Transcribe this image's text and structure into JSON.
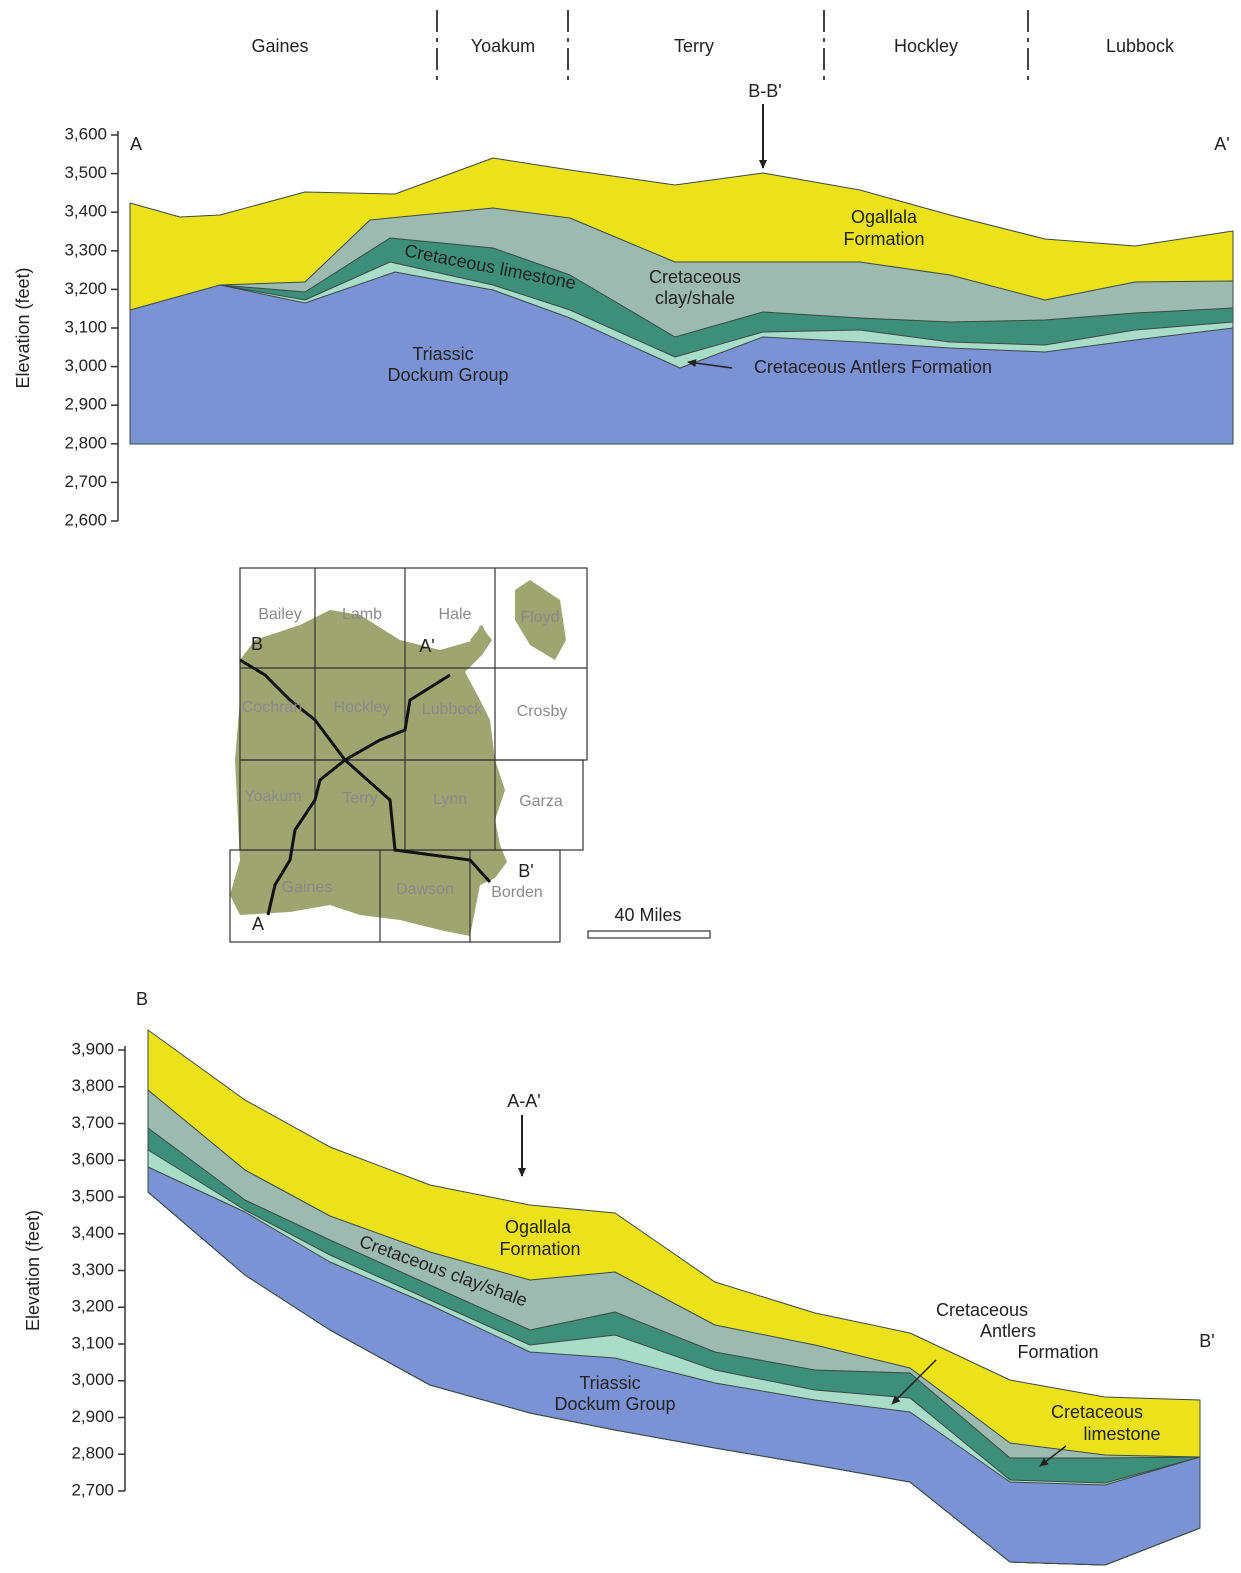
{
  "top_section": {
    "counties": [
      "Gaines",
      "Yoakum",
      "Terry",
      "Hockley",
      "Lubbock"
    ],
    "marker": "B-B'",
    "end_labels": [
      "A",
      "A'"
    ],
    "y_axis": {
      "title": "Elevation (feet)",
      "ticks": [
        {
          "value": 3600,
          "label": "3,600"
        },
        {
          "value": 3500,
          "label": "3,500"
        },
        {
          "value": 3400,
          "label": "3,400"
        },
        {
          "value": 3300,
          "label": "3,300"
        },
        {
          "value": 3200,
          "label": "3,200"
        },
        {
          "value": 3100,
          "label": "3,100"
        },
        {
          "value": 3000,
          "label": "3,000"
        },
        {
          "value": 2900,
          "label": "2,900"
        },
        {
          "value": 2800,
          "label": "2,800"
        },
        {
          "value": 2700,
          "label": "2,700"
        },
        {
          "value": 2600,
          "label": "2,600"
        }
      ]
    },
    "layer_labels": {
      "ogallala": [
        "Ogallala",
        "Formation"
      ],
      "limestone": [
        "Cretaceous limestone"
      ],
      "clay": [
        "Cretaceous",
        "clay/shale"
      ],
      "triassic": [
        "Triassic",
        "Dockum Group"
      ],
      "antlers": [
        "Cretaceous Antlers Formation"
      ]
    }
  },
  "map": {
    "counties": [
      "Bailey",
      "Lamb",
      "Hale",
      "Floyd",
      "Cochran",
      "Hockley",
      "Lubbock",
      "Crosby",
      "Yoakum",
      "Terry",
      "Lynn",
      "Garza",
      "Gaines",
      "Dawson",
      "Borden"
    ],
    "line_labels": [
      "B",
      "A'",
      "B'",
      "A"
    ],
    "scale": "40 Miles"
  },
  "bottom_section": {
    "marker": "A-A'",
    "end_labels": [
      "B",
      "B'"
    ],
    "y_axis": {
      "title": "Elevation (feet)",
      "ticks": [
        {
          "value": 3900,
          "label": "3,900"
        },
        {
          "value": 3800,
          "label": "3,800"
        },
        {
          "value": 3700,
          "label": "3,700"
        },
        {
          "value": 3600,
          "label": "3,600"
        },
        {
          "value": 3500,
          "label": "3,500"
        },
        {
          "value": 3400,
          "label": "3,400"
        },
        {
          "value": 3300,
          "label": "3,300"
        },
        {
          "value": 3200,
          "label": "3,200"
        },
        {
          "value": 3100,
          "label": "3,100"
        },
        {
          "value": 3000,
          "label": "3,000"
        },
        {
          "value": 2900,
          "label": "2,900"
        },
        {
          "value": 2800,
          "label": "2,800"
        },
        {
          "value": 2700,
          "label": "2,700"
        }
      ]
    },
    "layer_labels": {
      "ogallala": [
        "Ogallala",
        "Formation"
      ],
      "clay": [
        "Cretaceous clay/shale"
      ],
      "triassic": [
        "Triassic",
        "Dockum Group"
      ],
      "antlers": [
        "Cretaceous",
        "Antlers",
        "Formation"
      ],
      "limestone": [
        "Cretaceous",
        "limestone"
      ]
    }
  }
}
